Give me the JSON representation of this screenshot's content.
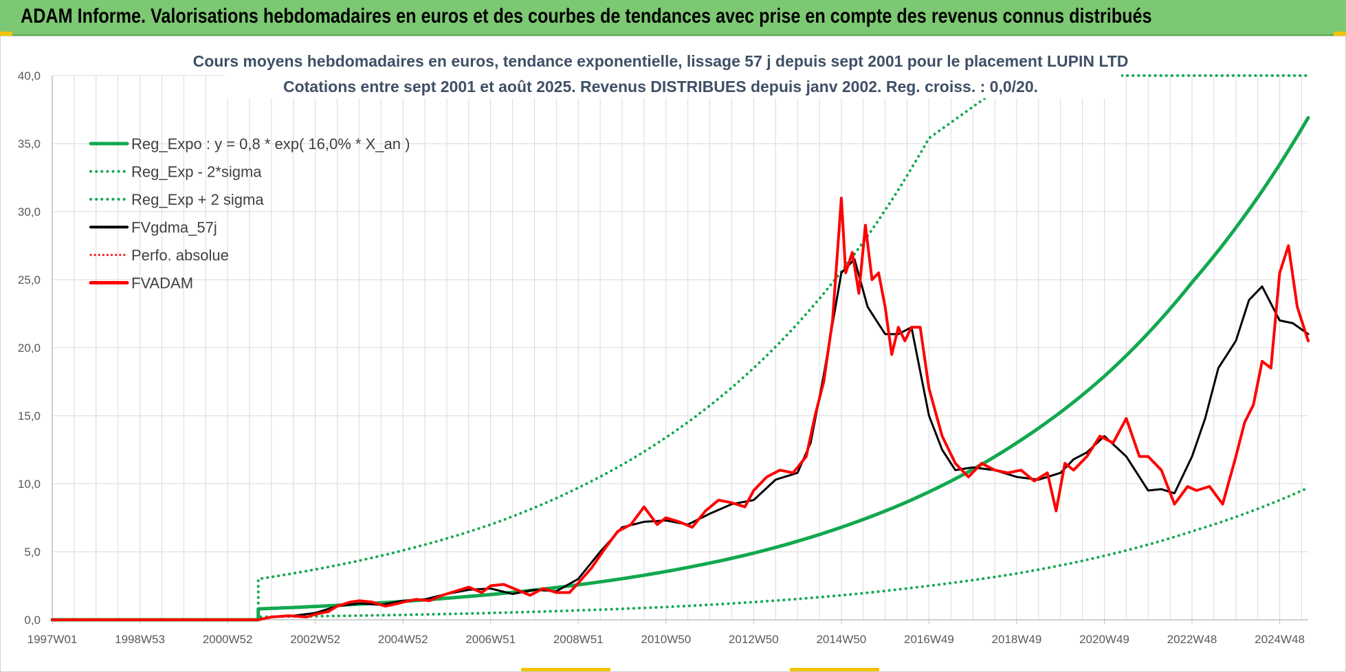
{
  "banner": {
    "title": "ADAM Informe. Valorisations hebdomadaires en euros et des courbes de tendances avec prise en compte des revenus connus distribués"
  },
  "colors": {
    "banner_bg": "#7dc873",
    "green": "#12a84f",
    "red": "#ff0000",
    "black": "#000000",
    "grid": "#d9d9d9"
  },
  "chart_data": {
    "type": "line",
    "title_line1": "Cours moyens hebdomadaires en euros, tendance exponentielle, lissage 57 j depuis sept 2001 pour le placement LUPIN LTD",
    "title_line2": "Cotations entre sept 2001 et août 2025. Revenus DISTRIBUES depuis janv 2002. Reg. croiss. : 0,0/20.",
    "x_tick_labels": [
      "1997W01",
      "1998W53",
      "2000W52",
      "2002W52",
      "2004W52",
      "2006W51",
      "2008W51",
      "2010W50",
      "2012W50",
      "2014W50",
      "2016W49",
      "2018W49",
      "2020W49",
      "2022W48",
      "2024W48"
    ],
    "x_tick_years": [
      1997.0,
      1999.0,
      2001.0,
      2003.0,
      2005.0,
      2007.0,
      2009.0,
      2011.0,
      2013.0,
      2015.0,
      2017.0,
      2019.0,
      2021.0,
      2023.0,
      2025.0
    ],
    "xlim": [
      1997.0,
      2025.65
    ],
    "ylim": [
      0,
      40
    ],
    "y_tick_labels": [
      "0,0",
      "5,0",
      "10,0",
      "15,0",
      "20,0",
      "25,0",
      "30,0",
      "35,0",
      "40,0"
    ],
    "grid": true,
    "legend_position": "top-left",
    "legend": [
      {
        "label": "Reg_Expo : y = 0,8 * exp( 16,0% *  X_an )",
        "style": "green-solid"
      },
      {
        "label": "Reg_Exp - 2*sigma",
        "style": "green-dotted"
      },
      {
        "label": "Reg_Exp + 2 sigma",
        "style": "green-dotted"
      },
      {
        "label": "FVgdma_57j",
        "style": "black-solid"
      },
      {
        "label": "Perfo. absolue",
        "style": "red-dotted"
      },
      {
        "label": "FVADAM",
        "style": "red-solid"
      }
    ],
    "series": [
      {
        "name": "Reg_Expo : y = 0,8 * exp( 16,0% *  X_an )",
        "color": "#12a84f",
        "style": "solid",
        "x": [
          1997.0,
          2001.7,
          2001.7,
          2003,
          2005,
          2007,
          2009,
          2011,
          2013,
          2015,
          2017,
          2019,
          2021,
          2023,
          2025.65
        ],
        "y": [
          0,
          0,
          0.8,
          0.98,
          1.35,
          1.86,
          2.57,
          3.55,
          4.9,
          6.8,
          9.4,
          13.0,
          17.9,
          24.8,
          36.9
        ]
      },
      {
        "name": "Reg_Exp - 2*sigma",
        "color": "#12a84f",
        "style": "dotted",
        "x": [
          1997.0,
          2001.7,
          2001.7,
          2003,
          2005,
          2007,
          2009,
          2011,
          2013,
          2015,
          2017,
          2019,
          2021,
          2023,
          2025.65
        ],
        "y": [
          0,
          0,
          0.22,
          0.26,
          0.36,
          0.5,
          0.69,
          0.94,
          1.3,
          1.8,
          2.5,
          3.4,
          4.7,
          6.5,
          9.7
        ]
      },
      {
        "name": "Reg_Exp + 2 sigma",
        "color": "#12a84f",
        "style": "dotted",
        "x": [
          1997.0,
          2001.7,
          2001.7,
          2003,
          2005,
          2007,
          2009,
          2011,
          2013,
          2015,
          2017,
          2019,
          2021,
          2023,
          2025.65
        ],
        "y": [
          0,
          0,
          3.0,
          3.7,
          5.1,
          7.0,
          9.7,
          13.4,
          18.5,
          25.6,
          35.4,
          40.0,
          40.0,
          40.0,
          40.0
        ]
      },
      {
        "name": "FVgdma_57j",
        "color": "#000000",
        "style": "solid",
        "x": [
          1997.0,
          2001.7,
          2002.0,
          2002.5,
          2003.0,
          2003.5,
          2004.0,
          2004.5,
          2005.0,
          2005.5,
          2006.0,
          2006.5,
          2007.0,
          2007.5,
          2008.0,
          2008.5,
          2009.0,
          2009.5,
          2010.0,
          2010.5,
          2011.0,
          2011.5,
          2012.0,
          2012.5,
          2013.0,
          2013.5,
          2014.0,
          2014.3,
          2014.6,
          2015.0,
          2015.3,
          2015.6,
          2016.0,
          2016.3,
          2016.6,
          2017.0,
          2017.3,
          2017.6,
          2018.0,
          2018.5,
          2019.0,
          2019.5,
          2020.0,
          2020.3,
          2020.6,
          2021.0,
          2021.5,
          2022.0,
          2022.3,
          2022.6,
          2023.0,
          2023.3,
          2023.6,
          2024.0,
          2024.3,
          2024.6,
          2025.0,
          2025.3,
          2025.65
        ],
        "y": [
          0,
          0,
          0.2,
          0.3,
          0.5,
          1.0,
          1.2,
          1.1,
          1.4,
          1.5,
          1.9,
          2.2,
          2.3,
          1.9,
          2.2,
          2.1,
          3.0,
          5.0,
          6.8,
          7.2,
          7.3,
          7.0,
          7.8,
          8.5,
          8.8,
          10.3,
          10.8,
          13.0,
          18.0,
          25.5,
          26.5,
          23.0,
          21.0,
          21.0,
          21.5,
          15.0,
          12.5,
          11.0,
          11.2,
          11.0,
          10.5,
          10.3,
          10.8,
          11.8,
          12.3,
          13.5,
          12.0,
          9.5,
          9.6,
          9.3,
          12.0,
          14.8,
          18.5,
          20.5,
          23.5,
          24.5,
          22.0,
          21.8,
          21.0
        ]
      },
      {
        "name": "Perfo. absolue",
        "color": "#ff0000",
        "style": "dotted",
        "x": [],
        "y": []
      },
      {
        "name": "FVADAM",
        "color": "#ff0000",
        "style": "solid",
        "x": [
          1997.0,
          2001.7,
          2002.0,
          2002.4,
          2002.8,
          2003.0,
          2003.3,
          2003.5,
          2003.8,
          2004.0,
          2004.3,
          2004.6,
          2004.9,
          2005.0,
          2005.3,
          2005.6,
          2005.9,
          2006.2,
          2006.5,
          2006.8,
          2007.0,
          2007.3,
          2007.6,
          2007.9,
          2008.2,
          2008.5,
          2008.8,
          2009.0,
          2009.3,
          2009.6,
          2009.9,
          2010.2,
          2010.5,
          2010.8,
          2011.0,
          2011.3,
          2011.6,
          2011.9,
          2012.2,
          2012.5,
          2012.8,
          2013.0,
          2013.3,
          2013.6,
          2013.9,
          2014.2,
          2014.4,
          2014.6,
          2014.8,
          2015.0,
          2015.1,
          2015.25,
          2015.4,
          2015.55,
          2015.7,
          2015.85,
          2016.0,
          2016.15,
          2016.3,
          2016.45,
          2016.6,
          2016.8,
          2017.0,
          2017.3,
          2017.6,
          2017.9,
          2018.2,
          2018.5,
          2018.8,
          2019.1,
          2019.4,
          2019.7,
          2019.9,
          2020.1,
          2020.3,
          2020.6,
          2020.9,
          2021.2,
          2021.5,
          2021.8,
          2022.0,
          2022.3,
          2022.6,
          2022.9,
          2023.1,
          2023.4,
          2023.7,
          2024.0,
          2024.2,
          2024.4,
          2024.6,
          2024.8,
          2025.0,
          2025.2,
          2025.4,
          2025.65
        ],
        "y": [
          0,
          0,
          0.2,
          0.3,
          0.2,
          0.4,
          0.6,
          1.0,
          1.3,
          1.4,
          1.3,
          1.0,
          1.2,
          1.3,
          1.5,
          1.4,
          1.8,
          2.1,
          2.4,
          2.0,
          2.5,
          2.6,
          2.2,
          1.8,
          2.3,
          2.0,
          2.0,
          2.7,
          3.8,
          5.2,
          6.5,
          7.0,
          8.3,
          7.0,
          7.5,
          7.2,
          6.8,
          8.0,
          8.8,
          8.6,
          8.3,
          9.5,
          10.5,
          11.0,
          10.8,
          12.0,
          15.0,
          17.5,
          22.0,
          31.0,
          25.5,
          27.0,
          24.0,
          29.0,
          25.0,
          25.5,
          23.0,
          19.5,
          21.5,
          20.5,
          21.5,
          21.5,
          17.0,
          13.5,
          11.5,
          10.5,
          11.5,
          11.0,
          10.8,
          11.0,
          10.2,
          10.8,
          8.0,
          11.5,
          11.0,
          12.0,
          13.5,
          13.0,
          14.8,
          12.0,
          12.0,
          11.0,
          8.5,
          9.8,
          9.5,
          9.8,
          8.5,
          12.0,
          14.5,
          15.8,
          19.0,
          18.5,
          25.5,
          27.5,
          23.0,
          20.5
        ]
      }
    ]
  }
}
